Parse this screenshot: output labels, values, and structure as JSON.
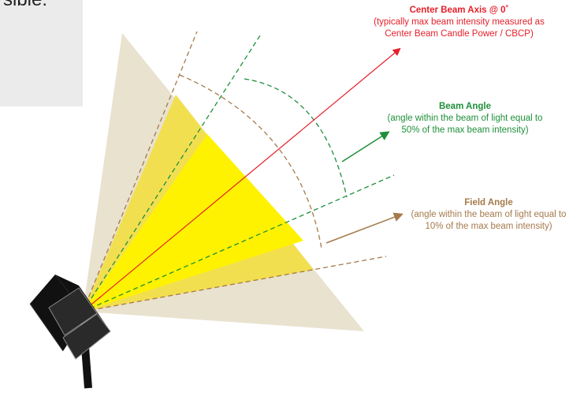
{
  "partial_text": "sible:",
  "center_beam": {
    "title": "Center Beam Axis @ 0˚",
    "desc_line1": "(typically max beam intensity measured as",
    "desc_line2": "Center Beam Candle Power / CBCP)"
  },
  "beam_angle": {
    "title": "Beam Angle",
    "desc_line1": "(angle within the beam of light equal to",
    "desc_line2": "50% of the max beam intensity)"
  },
  "field_angle": {
    "title": "Field Angle",
    "desc_line1": "(angle within the beam of light equal to",
    "desc_line2": "10% of the max beam intensity)"
  },
  "colors": {
    "center_axis": "#e5202a",
    "beam_angle": "#1f8f3a",
    "field_angle": "#a57a4b",
    "outer_cone": "#e8e2cf",
    "field_cone": "#f2df50",
    "beam_cone": "#fff200",
    "fixture": "#111111"
  },
  "icons": {
    "fixture": "light-fixture-icon"
  }
}
